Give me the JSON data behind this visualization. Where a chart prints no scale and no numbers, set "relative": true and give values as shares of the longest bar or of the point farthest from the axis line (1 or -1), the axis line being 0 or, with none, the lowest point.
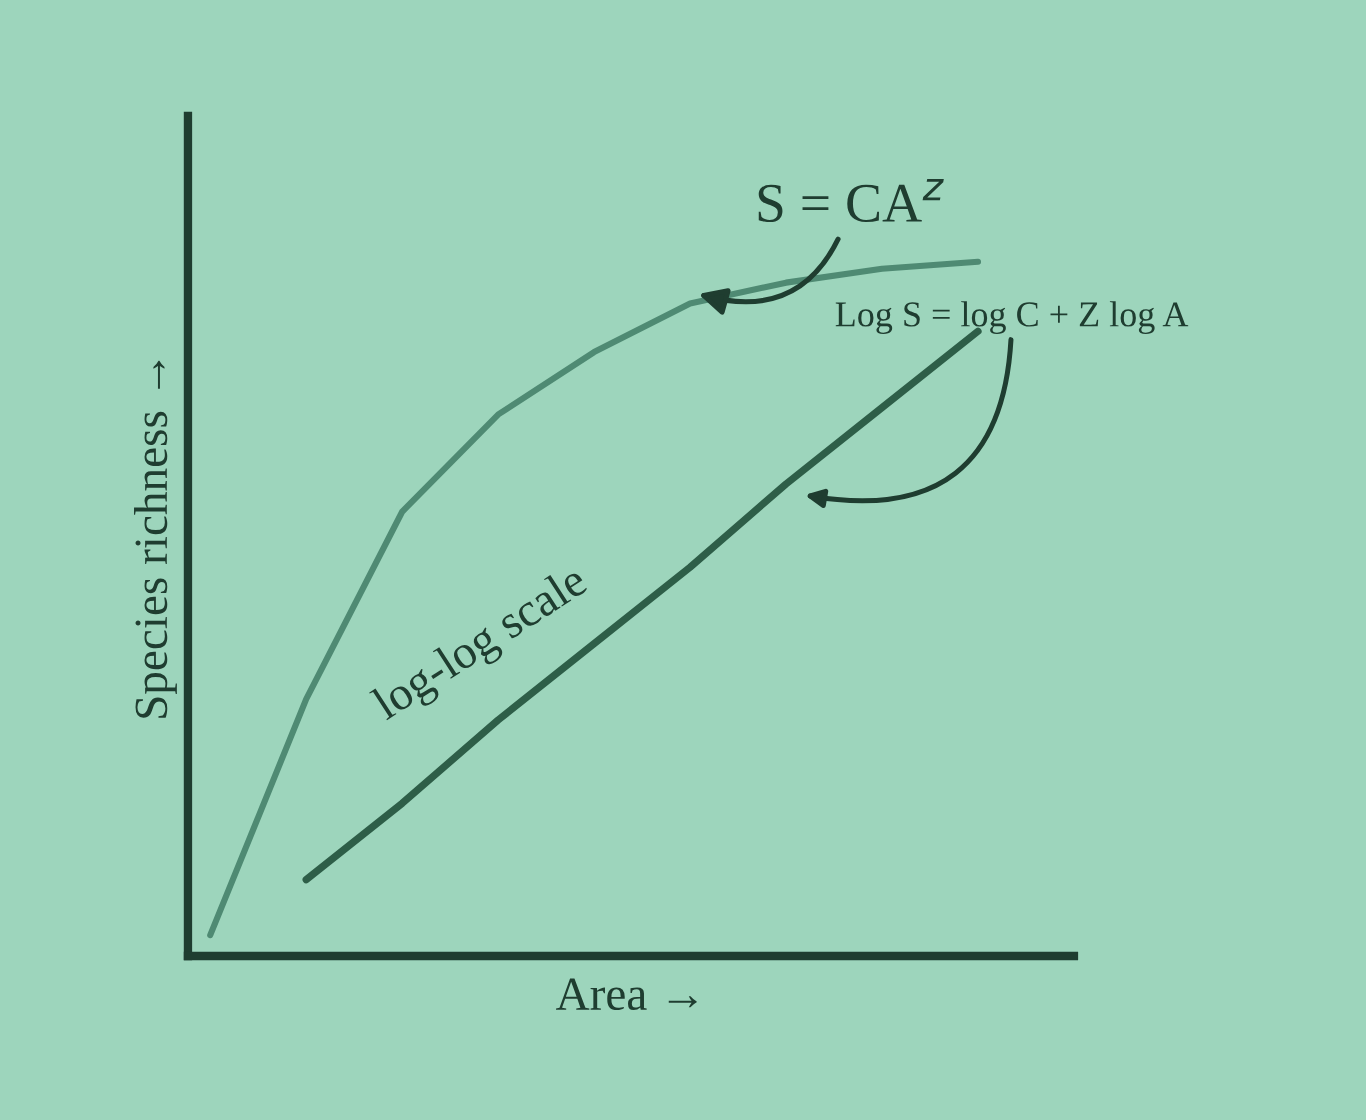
{
  "chart_data": {
    "type": "line",
    "relative": true,
    "xlabel": "Area →",
    "ylabel": "Species richness →",
    "marker": "none",
    "line_style": "solid",
    "categories": [
      null,
      null,
      null,
      null,
      null,
      null,
      null,
      null,
      null
    ],
    "series": [
      {
        "color": "#4f8a73",
        "values": [
          0.03,
          0.37,
          0.64,
          0.78,
          0.87,
          0.94,
          0.97,
          0.99,
          1.0
        ]
      },
      {
        "color": "#2e5e48",
        "values": [
          null,
          0.11,
          0.22,
          0.34,
          0.45,
          0.56,
          0.68,
          0.79,
          0.9
        ]
      }
    ],
    "annotations": [
      "S = CA$^{z}$",
      "Log S = log C + Z log A",
      "log-log scale"
    ]
  }
}
